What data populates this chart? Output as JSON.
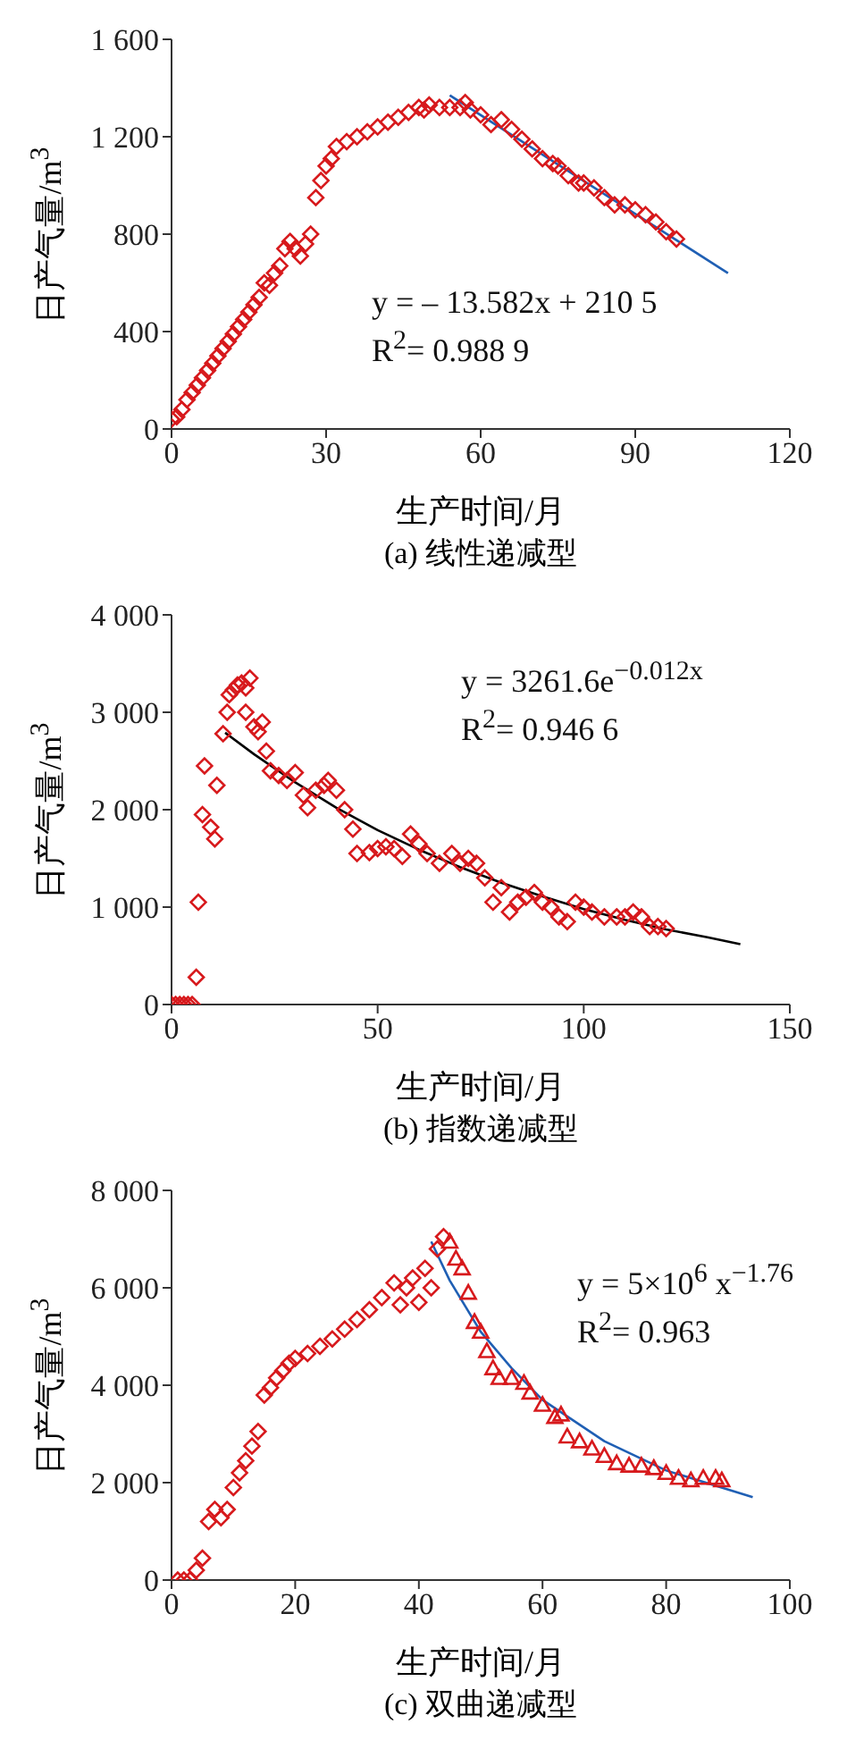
{
  "chart_data": [
    {
      "type": "scatter",
      "title": "(a) 线性递减型",
      "xlabel": "生产时间/月",
      "ylabel": "日产气量/m$^{3}$",
      "xlim": [
        0,
        120
      ],
      "xticks": [
        0,
        30,
        60,
        90,
        120
      ],
      "ylim": [
        0,
        1600
      ],
      "yticks": [
        0,
        400,
        800,
        {
          "value": 1200,
          "label": "1 200"
        },
        {
          "value": 1600,
          "label": "1 600"
        }
      ],
      "annotations": [
        "y = – 13.582x + 210 5",
        "R$^{2}$= 0.988 9"
      ],
      "series": [
        {
          "marker": "diamond",
          "color": "#d7191c",
          "x": [
            0,
            1,
            2,
            3,
            4,
            5,
            6,
            7,
            8,
            9,
            10,
            11,
            12,
            13,
            14,
            15,
            16,
            17,
            18,
            19,
            20,
            21,
            22,
            23,
            24,
            25,
            26,
            27,
            28,
            29,
            30,
            31,
            32,
            34,
            36,
            38,
            40,
            42,
            44,
            46,
            48,
            49,
            50,
            52,
            54,
            56,
            57,
            58,
            60,
            62,
            64,
            66,
            68,
            70,
            72,
            74,
            75,
            77,
            79,
            80,
            82,
            84,
            86,
            88,
            90,
            92,
            94,
            96,
            98
          ],
          "values": [
            40,
            50,
            80,
            120,
            150,
            180,
            210,
            240,
            270,
            300,
            330,
            360,
            390,
            420,
            450,
            480,
            510,
            540,
            600,
            590,
            640,
            670,
            740,
            770,
            740,
            710,
            760,
            800,
            950,
            1020,
            1080,
            1110,
            1160,
            1180,
            1200,
            1220,
            1240,
            1260,
            1280,
            1300,
            1320,
            1310,
            1330,
            1320,
            1320,
            1320,
            1340,
            1310,
            1290,
            1250,
            1270,
            1230,
            1190,
            1150,
            1110,
            1090,
            1080,
            1040,
            1010,
            1010,
            990,
            950,
            920,
            920,
            900,
            880,
            850,
            810,
            780
          ]
        },
        {
          "type": "line",
          "marker": "none",
          "color": "#1f5fb4",
          "x": [
            54,
            108
          ],
          "values": [
            1370,
            640
          ]
        }
      ]
    },
    {
      "type": "scatter",
      "title": "(b) 指数递减型",
      "xlabel": "生产时间/月",
      "ylabel": "日产气量/m$^{3}$",
      "xlim": [
        0,
        150
      ],
      "xticks": [
        0,
        50,
        100,
        150
      ],
      "ylim": [
        0,
        4000
      ],
      "yticks": [
        0,
        {
          "value": 1000,
          "label": "1 000"
        },
        {
          "value": 2000,
          "label": "2 000"
        },
        {
          "value": 3000,
          "label": "3 000"
        },
        {
          "value": 4000,
          "label": "4 000"
        }
      ],
      "annotations": [
        "y = 3261.6e$^{−0.012x}$",
        "R$^{2}$= 0.946 6"
      ],
      "series": [
        {
          "marker": "diamond",
          "color": "#d7191c",
          "x": [
            0,
            1,
            2,
            3,
            4,
            5,
            6,
            6.5,
            7.5,
            8,
            9.5,
            10.5,
            11,
            12.5,
            13.5,
            14,
            15,
            16,
            17,
            18,
            19,
            18,
            20,
            21,
            22,
            23,
            24,
            26,
            28,
            30,
            32,
            33,
            35,
            37,
            38,
            40,
            42,
            44,
            45,
            48,
            50,
            52,
            54,
            56,
            58,
            60,
            62,
            65,
            68,
            70,
            72,
            74,
            76,
            78,
            80,
            82,
            84,
            86,
            88,
            90,
            92,
            94,
            96,
            98,
            100,
            102,
            105,
            108,
            110,
            112,
            114,
            116,
            118,
            120
          ],
          "values": [
            0,
            0,
            0,
            0,
            0,
            0,
            280,
            1050,
            1950,
            2450,
            1820,
            1700,
            2250,
            2780,
            3000,
            3180,
            3230,
            3280,
            3300,
            3250,
            3350,
            3000,
            2850,
            2800,
            2900,
            2600,
            2400,
            2350,
            2300,
            2380,
            2150,
            2020,
            2200,
            2250,
            2300,
            2200,
            2000,
            1800,
            1550,
            1560,
            1600,
            1620,
            1600,
            1520,
            1750,
            1650,
            1550,
            1450,
            1550,
            1450,
            1500,
            1450,
            1300,
            1050,
            1200,
            950,
            1050,
            1100,
            1150,
            1050,
            1000,
            900,
            850,
            1050,
            1000,
            950,
            900,
            900,
            900,
            950,
            900,
            800,
            800,
            780
          ]
        },
        {
          "type": "line",
          "marker": "none",
          "color": "#000000",
          "x": [
            13,
            20,
            30,
            40,
            50,
            60,
            70,
            80,
            90,
            100,
            110,
            120,
            130,
            138
          ],
          "values": [
            2790,
            2570,
            2280,
            2020,
            1790,
            1590,
            1410,
            1250,
            1110,
            980,
            870,
            770,
            690,
            620
          ]
        }
      ]
    },
    {
      "type": "scatter",
      "title": "(c) 双曲递减型",
      "xlabel": "生产时间/月",
      "ylabel": "日产气量/m$^{3}$",
      "xlim": [
        0,
        100
      ],
      "xticks": [
        0,
        20,
        40,
        60,
        80,
        100
      ],
      "ylim": [
        0,
        8000
      ],
      "yticks": [
        0,
        {
          "value": 2000,
          "label": "2 000"
        },
        {
          "value": 4000,
          "label": "4 000"
        },
        {
          "value": 6000,
          "label": "6 000"
        },
        {
          "value": 8000,
          "label": "8 000"
        }
      ],
      "annotations": [
        "y = 5×10$^{6}$ x$^{−1.76}$",
        "R$^{2}$= 0.963"
      ],
      "series": [
        {
          "color": "#d7191c",
          "marker": "diamond",
          "x": [
            1,
            2,
            3,
            4,
            5,
            6,
            7,
            8,
            9,
            10,
            11,
            12,
            13,
            14,
            15,
            16,
            17,
            18,
            19,
            20,
            22,
            24,
            26,
            28,
            30,
            32,
            34,
            36,
            37,
            38,
            39,
            40,
            41,
            42,
            43,
            44
          ],
          "values": [
            0,
            0,
            0,
            200,
            450,
            1200,
            1450,
            1280,
            1450,
            1900,
            2200,
            2450,
            2750,
            3050,
            3800,
            3950,
            4150,
            4300,
            4450,
            4550,
            4650,
            4800,
            4950,
            5150,
            5350,
            5550,
            5800,
            6100,
            5650,
            6000,
            6200,
            5700,
            6400,
            6000,
            6800,
            7050
          ]
        },
        {
          "color": "#d7191c",
          "marker": "triangle",
          "x": [
            45,
            46,
            47,
            48,
            49,
            50,
            51,
            52,
            53,
            55,
            57,
            58,
            60,
            62,
            63,
            64,
            66,
            68,
            70,
            72,
            74,
            76,
            78,
            80,
            82,
            84,
            86,
            88,
            89
          ],
          "values": [
            6950,
            6600,
            6400,
            5900,
            5300,
            5100,
            4700,
            4350,
            4150,
            4150,
            4050,
            3850,
            3600,
            3350,
            3400,
            2950,
            2850,
            2700,
            2550,
            2400,
            2350,
            2350,
            2300,
            2200,
            2100,
            2050,
            2100,
            2100,
            2050
          ]
        },
        {
          "type": "line",
          "marker": "none",
          "color": "#1f5fb4",
          "x": [
            42,
            45,
            50,
            55,
            60,
            70,
            80,
            94
          ],
          "values": [
            6950,
            6150,
            5100,
            4350,
            3700,
            2850,
            2250,
            1700
          ]
        }
      ]
    }
  ]
}
